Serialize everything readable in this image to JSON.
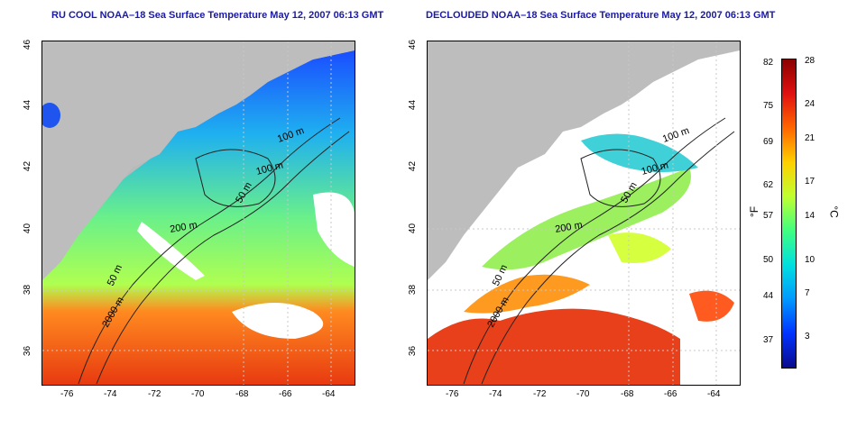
{
  "maps": [
    {
      "title": "RU COOL NOAA–18 Sea Surface Temperature May 12, 2007 06:13 GMT",
      "x_ticks": [
        "-76",
        "-74",
        "-72",
        "-70",
        "-68",
        "-66",
        "-64"
      ],
      "y_ticks": [
        "46",
        "44",
        "42",
        "40",
        "38",
        "36"
      ],
      "contour_labels": [
        "100 m",
        "100 m",
        "50 m",
        "200 m",
        "50 m",
        "2000 m"
      ],
      "land_color": "#bdbdbd"
    },
    {
      "title": "DECLOUDED NOAA–18 Sea Surface Temperature May 12, 2007 06:13 GMT",
      "x_ticks": [
        "-76",
        "-74",
        "-72",
        "-70",
        "-68",
        "-66",
        "-64"
      ],
      "y_ticks": [
        "46",
        "44",
        "42",
        "40",
        "38",
        "36"
      ],
      "contour_labels": [
        "100 m",
        "100 m",
        "50 m",
        "200 m",
        "50 m",
        "2000 m"
      ],
      "land_color": "#bdbdbd"
    }
  ],
  "colorbar": {
    "unit_f": "°F",
    "unit_c": "°C",
    "f_labels": [
      "82",
      "75",
      "69",
      "62",
      "57",
      "50",
      "44",
      "37"
    ],
    "c_labels": [
      "28",
      "24",
      "21",
      "17",
      "14",
      "10",
      "7",
      "3"
    ],
    "colors": [
      "#0a0a8c",
      "#0033ff",
      "#0099ff",
      "#00e0e0",
      "#40ff80",
      "#c0ff30",
      "#ffd000",
      "#ff6600",
      "#e01010",
      "#8b0000"
    ]
  }
}
